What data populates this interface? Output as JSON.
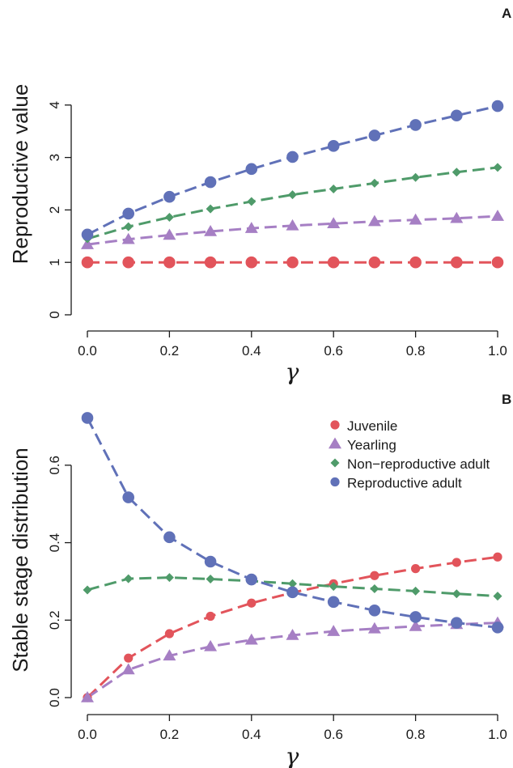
{
  "chart_data": [
    {
      "type": "line",
      "panel_label": "A",
      "xlabel": "γ",
      "ylabel": "Reproductive value",
      "x": [
        0.0,
        0.1,
        0.2,
        0.3,
        0.4,
        0.5,
        0.6,
        0.7,
        0.8,
        0.9,
        1.0
      ],
      "xlim": [
        0,
        1
      ],
      "ylim": [
        0,
        4
      ],
      "xticks": [
        "0.0",
        "0.2",
        "0.4",
        "0.6",
        "0.8",
        "1.0"
      ],
      "yticks": [
        "0",
        "1",
        "2",
        "3",
        "4"
      ],
      "grid": false,
      "series": [
        {
          "marker": "circle",
          "color": "#e2545b",
          "values": [
            1.0,
            1.0,
            1.0,
            1.0,
            1.0,
            1.0,
            1.0,
            1.0,
            1.0,
            1.0,
            1.0
          ]
        },
        {
          "marker": "triangle",
          "color": "#a67fc4",
          "values": [
            1.34,
            1.44,
            1.52,
            1.59,
            1.65,
            1.7,
            1.74,
            1.78,
            1.81,
            1.84,
            1.88
          ]
        },
        {
          "marker": "diamond",
          "color": "#4f9b6a",
          "values": [
            1.45,
            1.68,
            1.86,
            2.02,
            2.16,
            2.29,
            2.4,
            2.51,
            2.62,
            2.72,
            2.81
          ]
        },
        {
          "marker": "circle",
          "color": "#6071b8",
          "values": [
            1.53,
            1.93,
            2.25,
            2.53,
            2.78,
            3.01,
            3.22,
            3.42,
            3.62,
            3.8,
            3.98
          ]
        }
      ]
    },
    {
      "type": "line",
      "panel_label": "B",
      "xlabel": "γ",
      "ylabel": "Stable stage distribution",
      "x": [
        0.0,
        0.1,
        0.2,
        0.3,
        0.4,
        0.5,
        0.6,
        0.7,
        0.8,
        0.9,
        1.0
      ],
      "xlim": [
        0,
        1
      ],
      "ylim": [
        0,
        0.7
      ],
      "xticks": [
        "0.0",
        "0.2",
        "0.4",
        "0.6",
        "0.8",
        "1.0"
      ],
      "yticks": [
        "0.0",
        "0.2",
        "0.4",
        "0.6"
      ],
      "grid": false,
      "legend_position": "top-right",
      "series": [
        {
          "name": "Juvenile",
          "marker": "circle-small",
          "color": "#e2545b",
          "values": [
            0.0,
            0.102,
            0.165,
            0.21,
            0.244,
            0.271,
            0.294,
            0.315,
            0.333,
            0.349,
            0.363
          ]
        },
        {
          "name": "Yearling",
          "marker": "triangle",
          "color": "#a67fc4",
          "values": [
            0.0,
            0.072,
            0.108,
            0.132,
            0.149,
            0.161,
            0.171,
            0.178,
            0.184,
            0.189,
            0.193
          ]
        },
        {
          "name": "Non−reproductive adult",
          "marker": "diamond",
          "color": "#4f9b6a",
          "values": [
            0.278,
            0.307,
            0.31,
            0.306,
            0.301,
            0.294,
            0.287,
            0.281,
            0.275,
            0.268,
            0.262
          ]
        },
        {
          "name": "Reproductive adult",
          "marker": "circle",
          "color": "#6071b8",
          "values": [
            0.722,
            0.517,
            0.414,
            0.351,
            0.305,
            0.272,
            0.247,
            0.225,
            0.208,
            0.193,
            0.181
          ]
        }
      ]
    }
  ]
}
